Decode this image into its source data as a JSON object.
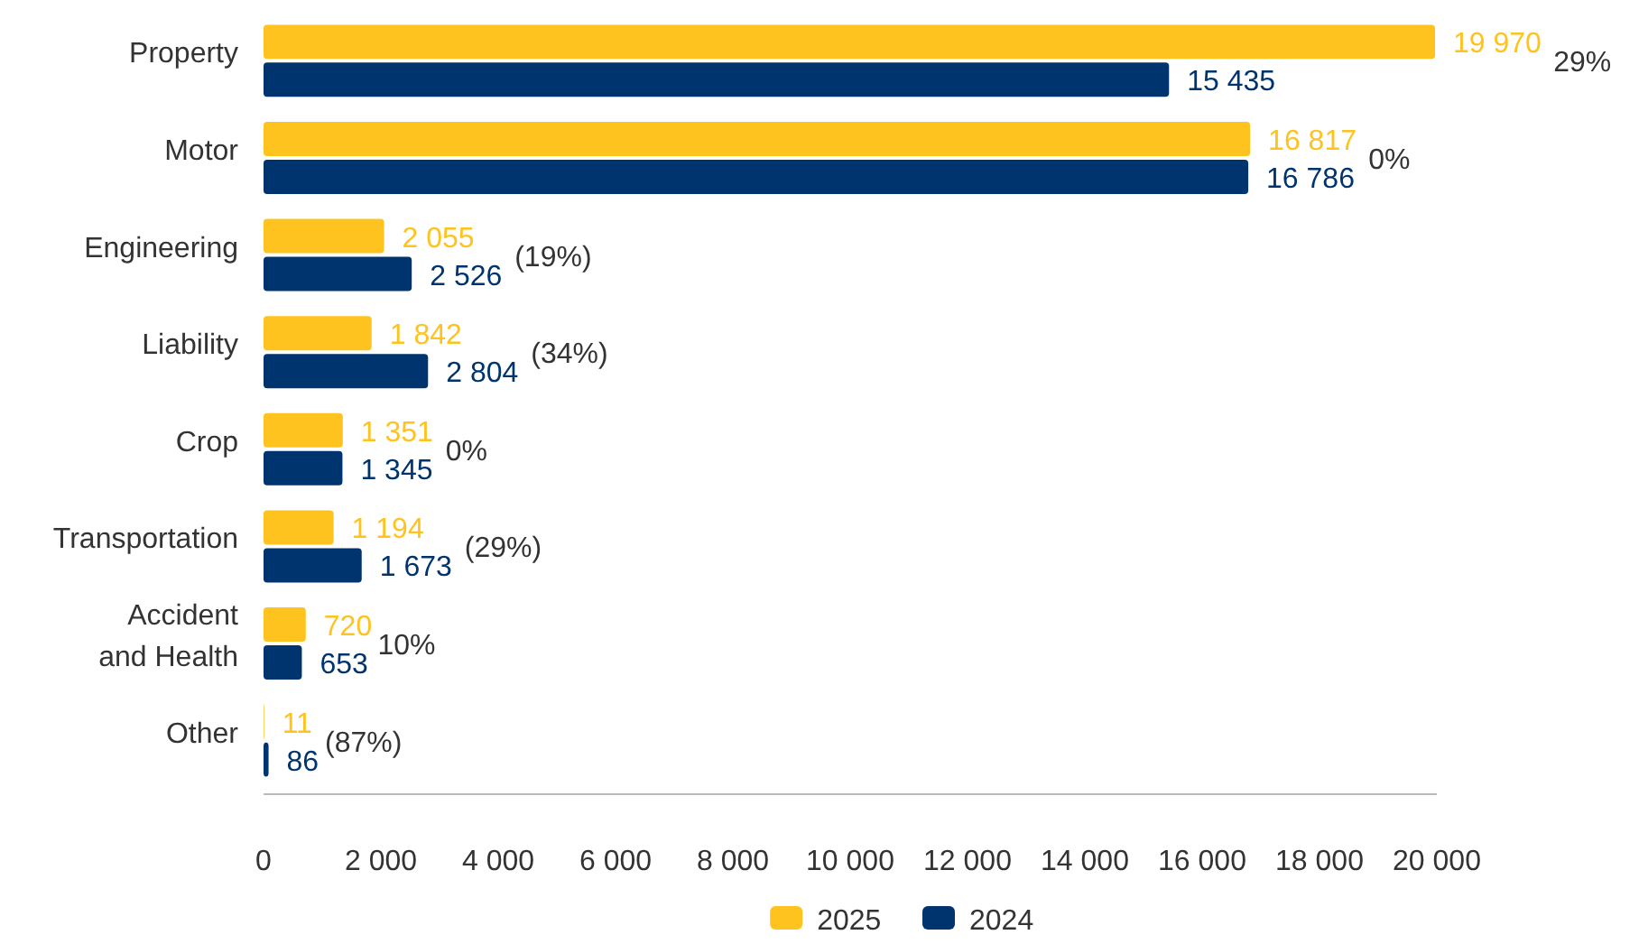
{
  "chart_data": {
    "type": "bar",
    "orientation": "horizontal",
    "categories": [
      "Property",
      "Motor",
      "Engineering",
      "Liability",
      "Crop",
      "Transportation",
      "Accident and Health",
      "Other"
    ],
    "series": [
      {
        "name": "2025",
        "color": "#fec31f",
        "values": [
          19970,
          16817,
          2055,
          1842,
          1351,
          1194,
          720,
          11
        ],
        "value_labels": [
          "19 970",
          "16 817",
          "2 055",
          "1 842",
          "1 351",
          "1 194",
          "720",
          "11"
        ]
      },
      {
        "name": "2024",
        "color": "#00346e",
        "values": [
          15435,
          16786,
          2526,
          2804,
          1345,
          1673,
          653,
          86
        ],
        "value_labels": [
          "15 435",
          "16 786",
          "2 526",
          "2 804",
          "1 345",
          "1 673",
          "653",
          "86"
        ]
      }
    ],
    "xlim": [
      0,
      20000
    ],
    "xticks": [
      {
        "value": 0,
        "label": "0"
      },
      {
        "value": 2000,
        "label": "2 000"
      },
      {
        "value": 4000,
        "label": "4 000"
      },
      {
        "value": 6000,
        "label": "6 000"
      },
      {
        "value": 8000,
        "label": "8 000"
      },
      {
        "value": 10000,
        "label": "10 000"
      },
      {
        "value": 12000,
        "label": "12 000"
      },
      {
        "value": 14000,
        "label": "14 000"
      },
      {
        "value": 16000,
        "label": "16 000"
      },
      {
        "value": 18000,
        "label": "18 000"
      },
      {
        "value": 20000,
        "label": "20 000"
      }
    ],
    "annotations": [
      "29%",
      "0%",
      "(19%)",
      "(34%)",
      "0%",
      "(29%)",
      "10%",
      "(87%)"
    ],
    "grid": false,
    "legend": "bottom"
  }
}
